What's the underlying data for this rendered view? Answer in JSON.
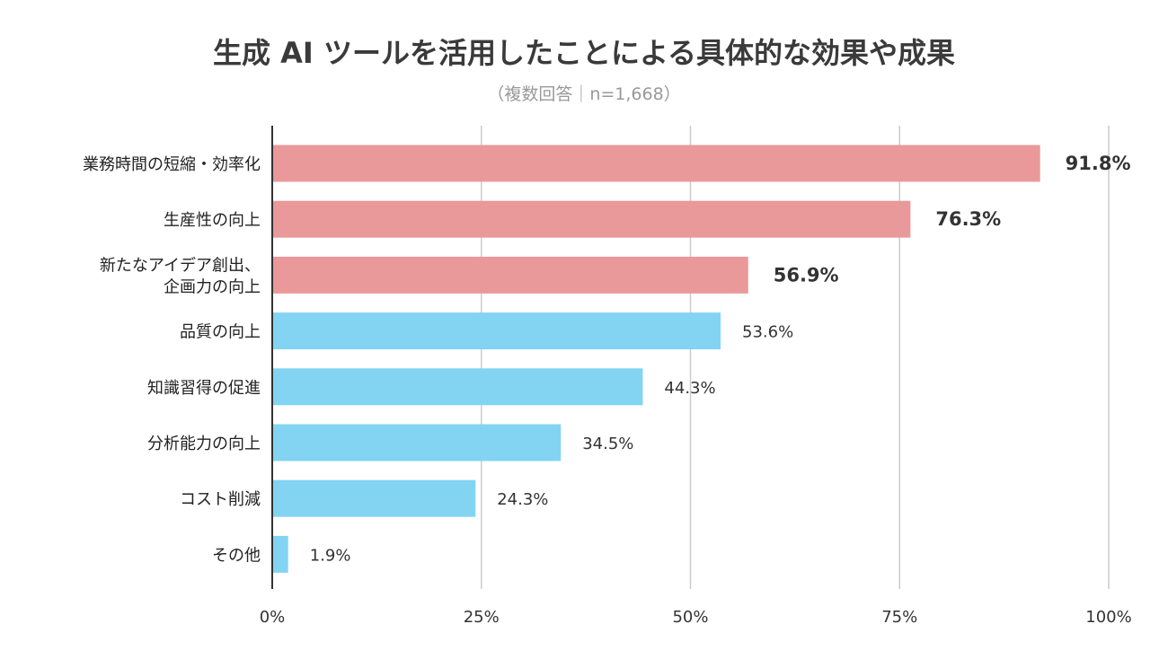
{
  "chart_data": {
    "type": "bar",
    "orientation": "horizontal",
    "title": "生成 AI ツールを活用したことによる具体的な効果や成果",
    "subtitle": "（複数回答｜n=1,668）",
    "categories": [
      [
        "業務時間の短縮・効率化"
      ],
      [
        "生産性の向上"
      ],
      [
        "新たなアイデア創出、",
        "企画力の向上"
      ],
      [
        "品質の向上"
      ],
      [
        "知識習得の促進"
      ],
      [
        "分析能力の向上"
      ],
      [
        "コスト削減"
      ],
      [
        "その他"
      ]
    ],
    "values": [
      91.8,
      76.3,
      56.9,
      53.6,
      44.3,
      34.5,
      24.3,
      1.9
    ],
    "value_labels": [
      "91.8%",
      "76.3%",
      "56.9%",
      "53.6%",
      "44.3%",
      "34.5%",
      "24.3%",
      "1.9%"
    ],
    "highlighted": [
      true,
      true,
      true,
      false,
      false,
      false,
      false,
      false
    ],
    "xlim": [
      0,
      100
    ],
    "xticks": [
      0,
      25,
      50,
      75,
      100
    ],
    "xtick_labels": [
      "0%",
      "25%",
      "50%",
      "75%",
      "100%"
    ],
    "grid": true,
    "colors": {
      "highlight": "#E99999",
      "normal": "#82D4F2",
      "grid": "#cccccc",
      "axis": "#333333",
      "text": "#333333"
    }
  }
}
